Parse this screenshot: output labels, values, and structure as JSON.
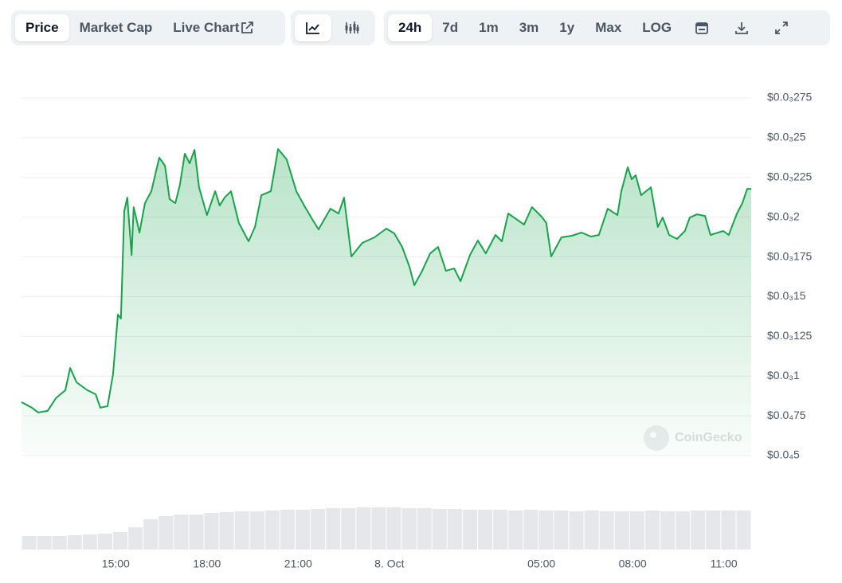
{
  "toolbar": {
    "tabs": [
      "Price",
      "Market Cap",
      "Live Chart"
    ],
    "ranges": [
      "24h",
      "7d",
      "1m",
      "3m",
      "1y",
      "Max",
      "LOG"
    ]
  },
  "chart_data": {
    "type": "area",
    "color": "#16a34a",
    "grid": true,
    "watermark": "CoinGecko",
    "xlim": [
      11.9,
      35.9
    ],
    "xticks": [
      {
        "value": 15,
        "label": "15:00"
      },
      {
        "value": 18,
        "label": "18:00"
      },
      {
        "value": 21,
        "label": "21:00"
      },
      {
        "value": 24,
        "label": "8. Oct"
      },
      {
        "value": 29,
        "label": "05:00"
      },
      {
        "value": 32,
        "label": "08:00"
      },
      {
        "value": 35,
        "label": "11:00"
      }
    ],
    "ylim": [
      5e-05,
      0.000275
    ],
    "yticks": [
      {
        "value": 5e-05,
        "label": "$0.0₄5"
      },
      {
        "value": 7.5e-05,
        "label": "$0.0₄75"
      },
      {
        "value": 0.0001,
        "label": "$0.0₃1"
      },
      {
        "value": 0.000125,
        "label": "$0.0₃125"
      },
      {
        "value": 0.00015,
        "label": "$0.0₃15"
      },
      {
        "value": 0.000175,
        "label": "$0.0₃175"
      },
      {
        "value": 0.0002,
        "label": "$0.0₃2"
      },
      {
        "value": 0.000225,
        "label": "$0.0₃225"
      },
      {
        "value": 0.00025,
        "label": "$0.0₃25"
      },
      {
        "value": 0.000275,
        "label": "$0.0₃275"
      }
    ],
    "x": [
      11.9,
      12.24,
      12.45,
      12.76,
      13.03,
      13.34,
      13.5,
      13.71,
      14.07,
      14.34,
      14.49,
      14.73,
      14.91,
      15.07,
      15.17,
      15.28,
      15.38,
      15.52,
      15.59,
      15.78,
      15.96,
      16.17,
      16.43,
      16.62,
      16.77,
      16.96,
      17.11,
      17.27,
      17.43,
      17.59,
      17.74,
      18.0,
      18.27,
      18.42,
      18.58,
      18.79,
      19.05,
      19.37,
      19.58,
      19.79,
      20.1,
      20.34,
      20.62,
      20.94,
      21.2,
      21.46,
      21.67,
      22.06,
      22.33,
      22.51,
      22.75,
      23.11,
      23.51,
      23.9,
      24.16,
      24.42,
      24.66,
      24.82,
      25.08,
      25.34,
      25.6,
      25.86,
      26.13,
      26.34,
      26.65,
      26.91,
      27.17,
      27.49,
      27.7,
      27.91,
      28.17,
      28.43,
      28.69,
      29.01,
      29.16,
      29.32,
      29.66,
      30.0,
      30.32,
      30.63,
      30.89,
      31.18,
      31.5,
      31.63,
      31.84,
      31.97,
      32.1,
      32.28,
      32.6,
      32.83,
      32.99,
      33.2,
      33.46,
      33.72,
      33.88,
      34.12,
      34.38,
      34.56,
      34.98,
      35.16,
      35.43,
      35.61,
      35.77,
      35.9
    ],
    "values": [
      8.36e-05,
      8.01e-05,
      7.71e-05,
      7.81e-05,
      8.61e-05,
      9.11e-05,
      0.0001051,
      9.61e-05,
      9.11e-05,
      8.86e-05,
      8.01e-05,
      8.11e-05,
      0.0001011,
      0.0001387,
      0.0001362,
      0.0002038,
      0.0002123,
      0.0001762,
      0.0002063,
      0.0001903,
      0.0002088,
      0.0002163,
      0.0002374,
      0.0002324,
      0.0002113,
      0.0002088,
      0.0002203,
      0.0002399,
      0.0002339,
      0.0002424,
      0.0002188,
      0.0002013,
      0.0002163,
      0.0002073,
      0.0002123,
      0.0002163,
      0.0001963,
      0.0001848,
      0.0001938,
      0.0002138,
      0.0002163,
      0.0002429,
      0.0002364,
      0.0002163,
      0.0002073,
      0.0001988,
      0.0001923,
      0.0002053,
      0.0002023,
      0.0002123,
      0.0001753,
      0.0001838,
      0.0001873,
      0.0001928,
      0.0001898,
      0.0001813,
      0.0001688,
      0.0001572,
      0.0001662,
      0.0001772,
      0.0001813,
      0.0001662,
      0.0001677,
      0.0001597,
      0.0001762,
      0.0001853,
      0.0001772,
      0.0001888,
      0.0001848,
      0.0002023,
      0.0001988,
      0.0001953,
      0.0002063,
      0.0002003,
      0.0001963,
      0.0001753,
      0.0001873,
      0.0001883,
      0.0001903,
      0.0001878,
      0.0001888,
      0.0002053,
      0.0002013,
      0.0002163,
      0.0002314,
      0.0002239,
      0.0002264,
      0.0002138,
      0.0002188,
      0.0001938,
      0.0001998,
      0.0001888,
      0.0001863,
      0.0001913,
      0.0001998,
      0.0002018,
      0.0002008,
      0.0001888,
      0.0001913,
      0.0001888,
      0.0002023,
      0.0002088,
      0.0002178,
      0.0002178
    ],
    "volume": {
      "color": "#e5e7eb",
      "ylim": [
        0,
        70
      ],
      "values": [
        17,
        17,
        17,
        18,
        19,
        20,
        22,
        28,
        38,
        42,
        44,
        44,
        46,
        47,
        48,
        48,
        49,
        50,
        50,
        51,
        52,
        52,
        53,
        53,
        53,
        52,
        52,
        51,
        51,
        50,
        50,
        50,
        49,
        50,
        49,
        49,
        48,
        49,
        48,
        48,
        48,
        49,
        48,
        48,
        49,
        49,
        49,
        49
      ]
    }
  }
}
